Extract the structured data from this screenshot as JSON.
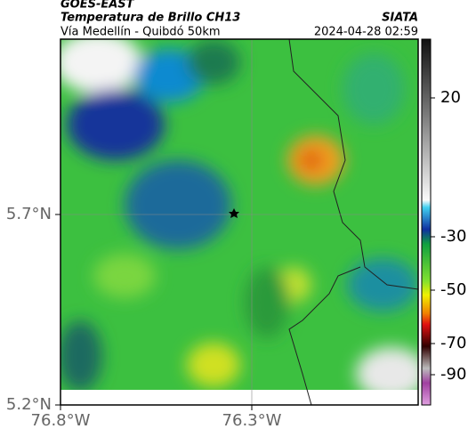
{
  "header": {
    "source": "GOES-EAST",
    "title": "Temperatura de Brillo CH13",
    "subtitle": "Vía Medellín - Quibdó 50km",
    "organization": "SIATA",
    "datetime": "2024-04-28 02:59"
  },
  "axes": {
    "lat_ticks": [
      "5.7°N",
      "5.2°N"
    ],
    "lon_ticks": [
      "76.8°W",
      "76.3°W"
    ]
  },
  "colorbar": {
    "ticks": [
      "20",
      "-30",
      "-50",
      "-70",
      "-90"
    ]
  }
}
